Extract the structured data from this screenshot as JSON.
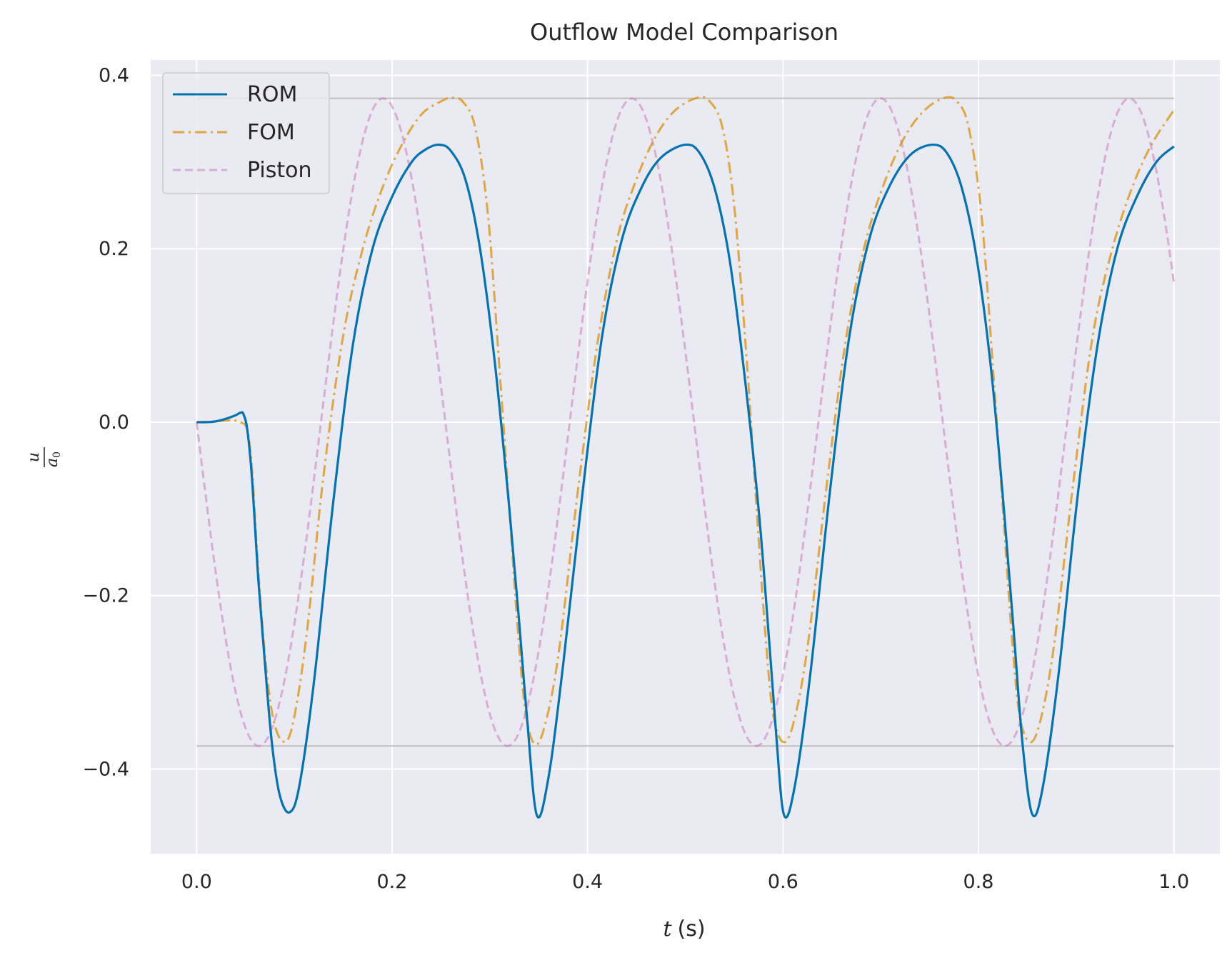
{
  "chart_data": {
    "type": "line",
    "title": "Outflow Model Comparison",
    "xlabel": {
      "var": "t",
      "unit": "(s)"
    },
    "ylabel": {
      "num": "u",
      "den": "a",
      "den_sub": "0"
    },
    "xlim": [
      -0.047,
      1.047
    ],
    "ylim": [
      -0.4977,
      0.4177
    ],
    "xticks": [
      0.0,
      0.2,
      0.4,
      0.6,
      0.8,
      1.0
    ],
    "xtick_labels": [
      "0.0",
      "0.2",
      "0.4",
      "0.6",
      "0.8",
      "1.0"
    ],
    "yticks": [
      -0.4,
      -0.2,
      0.0,
      0.2,
      0.4
    ],
    "ytick_labels": [
      "−0.4",
      "−0.2",
      "0.0",
      "0.2",
      "0.4"
    ],
    "grid": true,
    "legend_position": "upper-left",
    "background": "#eaeaf2",
    "reference_lines": [
      {
        "y": 0.3735,
        "x_range": [
          0.0,
          1.0
        ],
        "color": "#bfbfbf"
      },
      {
        "y": -0.3735,
        "x_range": [
          0.0,
          1.0
        ],
        "color": "#bfbfbf"
      }
    ],
    "series": [
      {
        "name": "ROM",
        "color": "#0173b2",
        "dash": "solid",
        "points": [
          [
            0.0,
            0.0
          ],
          [
            0.01,
            0.0
          ],
          [
            0.02,
            0.001
          ],
          [
            0.03,
            0.004
          ],
          [
            0.04,
            0.008
          ],
          [
            0.045,
            0.011
          ],
          [
            0.048,
            0.009
          ],
          [
            0.052,
            -0.01
          ],
          [
            0.057,
            -0.07
          ],
          [
            0.063,
            -0.18
          ],
          [
            0.07,
            -0.28
          ],
          [
            0.077,
            -0.37
          ],
          [
            0.085,
            -0.43
          ],
          [
            0.095,
            -0.45
          ],
          [
            0.105,
            -0.42
          ],
          [
            0.12,
            -0.3
          ],
          [
            0.14,
            -0.09
          ],
          [
            0.16,
            0.09
          ],
          [
            0.18,
            0.2
          ],
          [
            0.2,
            0.26
          ],
          [
            0.22,
            0.3
          ],
          [
            0.235,
            0.315
          ],
          [
            0.248,
            0.32
          ],
          [
            0.26,
            0.313
          ],
          [
            0.275,
            0.28
          ],
          [
            0.29,
            0.2
          ],
          [
            0.305,
            0.07
          ],
          [
            0.32,
            -0.1
          ],
          [
            0.33,
            -0.23
          ],
          [
            0.338,
            -0.34
          ],
          [
            0.348,
            -0.453
          ],
          [
            0.36,
            -0.41
          ],
          [
            0.375,
            -0.28
          ],
          [
            0.395,
            -0.08
          ],
          [
            0.415,
            0.1
          ],
          [
            0.435,
            0.21
          ],
          [
            0.455,
            0.27
          ],
          [
            0.475,
            0.305
          ],
          [
            0.5,
            0.32
          ],
          [
            0.515,
            0.31
          ],
          [
            0.53,
            0.27
          ],
          [
            0.545,
            0.19
          ],
          [
            0.56,
            0.06
          ],
          [
            0.575,
            -0.1
          ],
          [
            0.585,
            -0.24
          ],
          [
            0.593,
            -0.36
          ],
          [
            0.601,
            -0.453
          ],
          [
            0.612,
            -0.42
          ],
          [
            0.628,
            -0.29
          ],
          [
            0.648,
            -0.08
          ],
          [
            0.668,
            0.1
          ],
          [
            0.688,
            0.21
          ],
          [
            0.708,
            0.27
          ],
          [
            0.73,
            0.308
          ],
          [
            0.753,
            0.32
          ],
          [
            0.768,
            0.31
          ],
          [
            0.783,
            0.27
          ],
          [
            0.798,
            0.19
          ],
          [
            0.813,
            0.06
          ],
          [
            0.826,
            -0.1
          ],
          [
            0.836,
            -0.24
          ],
          [
            0.845,
            -0.37
          ],
          [
            0.855,
            -0.452
          ],
          [
            0.866,
            -0.42
          ],
          [
            0.882,
            -0.29
          ],
          [
            0.902,
            -0.08
          ],
          [
            0.922,
            0.09
          ],
          [
            0.942,
            0.2
          ],
          [
            0.962,
            0.26
          ],
          [
            0.982,
            0.3
          ],
          [
            1.0,
            0.318
          ]
        ]
      },
      {
        "name": "FOM",
        "color": "#de8f05",
        "dash": "dashdot",
        "points": [
          [
            0.0,
            0.0
          ],
          [
            0.02,
            0.001
          ],
          [
            0.035,
            0.002
          ],
          [
            0.045,
            0.0
          ],
          [
            0.052,
            -0.01
          ],
          [
            0.057,
            -0.06
          ],
          [
            0.063,
            -0.17
          ],
          [
            0.07,
            -0.27
          ],
          [
            0.078,
            -0.34
          ],
          [
            0.088,
            -0.368
          ],
          [
            0.098,
            -0.35
          ],
          [
            0.112,
            -0.25
          ],
          [
            0.13,
            -0.06
          ],
          [
            0.15,
            0.1
          ],
          [
            0.17,
            0.2
          ],
          [
            0.19,
            0.27
          ],
          [
            0.21,
            0.32
          ],
          [
            0.23,
            0.355
          ],
          [
            0.25,
            0.37
          ],
          [
            0.26,
            0.374
          ],
          [
            0.272,
            0.37
          ],
          [
            0.285,
            0.34
          ],
          [
            0.298,
            0.24
          ],
          [
            0.31,
            0.06
          ],
          [
            0.32,
            -0.1
          ],
          [
            0.328,
            -0.23
          ],
          [
            0.336,
            -0.33
          ],
          [
            0.345,
            -0.37
          ],
          [
            0.355,
            -0.355
          ],
          [
            0.37,
            -0.27
          ],
          [
            0.39,
            -0.08
          ],
          [
            0.41,
            0.09
          ],
          [
            0.43,
            0.21
          ],
          [
            0.45,
            0.28
          ],
          [
            0.47,
            0.33
          ],
          [
            0.49,
            0.36
          ],
          [
            0.512,
            0.374
          ],
          [
            0.525,
            0.37
          ],
          [
            0.538,
            0.34
          ],
          [
            0.55,
            0.25
          ],
          [
            0.563,
            0.07
          ],
          [
            0.573,
            -0.1
          ],
          [
            0.581,
            -0.23
          ],
          [
            0.589,
            -0.33
          ],
          [
            0.599,
            -0.368
          ],
          [
            0.61,
            -0.35
          ],
          [
            0.625,
            -0.26
          ],
          [
            0.645,
            -0.07
          ],
          [
            0.665,
            0.1
          ],
          [
            0.685,
            0.21
          ],
          [
            0.705,
            0.28
          ],
          [
            0.725,
            0.33
          ],
          [
            0.745,
            0.36
          ],
          [
            0.765,
            0.374
          ],
          [
            0.778,
            0.37
          ],
          [
            0.79,
            0.34
          ],
          [
            0.803,
            0.24
          ],
          [
            0.815,
            0.06
          ],
          [
            0.825,
            -0.1
          ],
          [
            0.833,
            -0.23
          ],
          [
            0.841,
            -0.33
          ],
          [
            0.851,
            -0.368
          ],
          [
            0.862,
            -0.35
          ],
          [
            0.877,
            -0.26
          ],
          [
            0.897,
            -0.07
          ],
          [
            0.917,
            0.1
          ],
          [
            0.937,
            0.2
          ],
          [
            0.957,
            0.27
          ],
          [
            0.977,
            0.32
          ],
          [
            1.0,
            0.36
          ]
        ]
      },
      {
        "name": "Piston",
        "color": "#cc78bc",
        "dash": "dashed",
        "opacity": 0.55,
        "func": {
          "amplitude": 0.3735,
          "period": 0.2545,
          "form": "-sin"
        }
      }
    ]
  }
}
